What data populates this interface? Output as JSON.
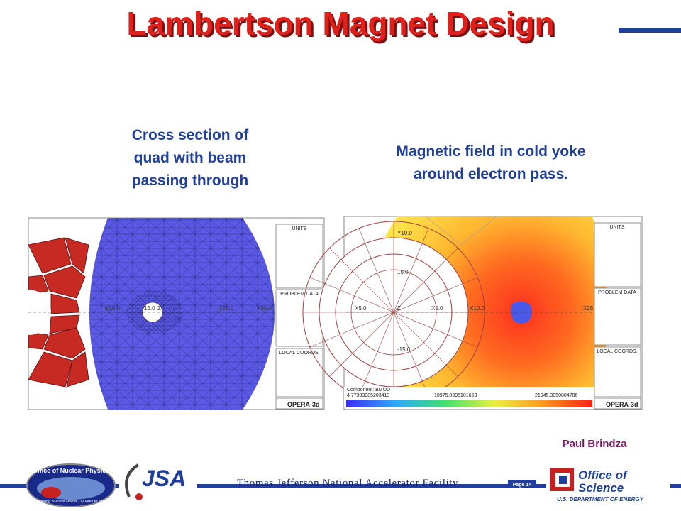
{
  "header": {
    "title": "Lambertson Magnet Design"
  },
  "panels": [
    {
      "caption": [
        "Cross section of",
        "quad with beam",
        "passing through"
      ],
      "image": {
        "axis_labels": [
          "X10.0",
          "15.0",
          "Z",
          "X25.0",
          "X30.0"
        ],
        "sidebar": [
          "UNITS",
          "PROBLEM DATA",
          "LOCAL COORDS."
        ],
        "software": "OPERA-3d"
      }
    },
    {
      "caption": [
        "Magnetic field in cold yoke",
        "around electron pass."
      ],
      "image": {
        "axis_labels": [
          "Y10.0",
          "15.0",
          "X5.0",
          "Z",
          "X5.0",
          "X10.0",
          "X25",
          "-15.0"
        ],
        "component": "Component: BMOD",
        "scale_labels": [
          "4.77393985203413",
          "10975.0395101653",
          "21945.3050804786"
        ],
        "sidebar": [
          "UNITS",
          "PROBLEM DATA",
          "LOCAL COORDS."
        ],
        "software": "OPERA-3d"
      }
    }
  ],
  "author": "Paul Brindza",
  "footer": {
    "lab": "Thomas Jefferson National Accelerator Facility",
    "page": "Page 14",
    "logos": {
      "nuclear_physics": [
        "Office of Nuclear Physics",
        "Exploring Nuclear Matter - Quarks to Stars"
      ],
      "jsa": "JSA",
      "science": [
        "Office of",
        "Science",
        "U.S. DEPARTMENT OF ENERGY"
      ]
    }
  }
}
